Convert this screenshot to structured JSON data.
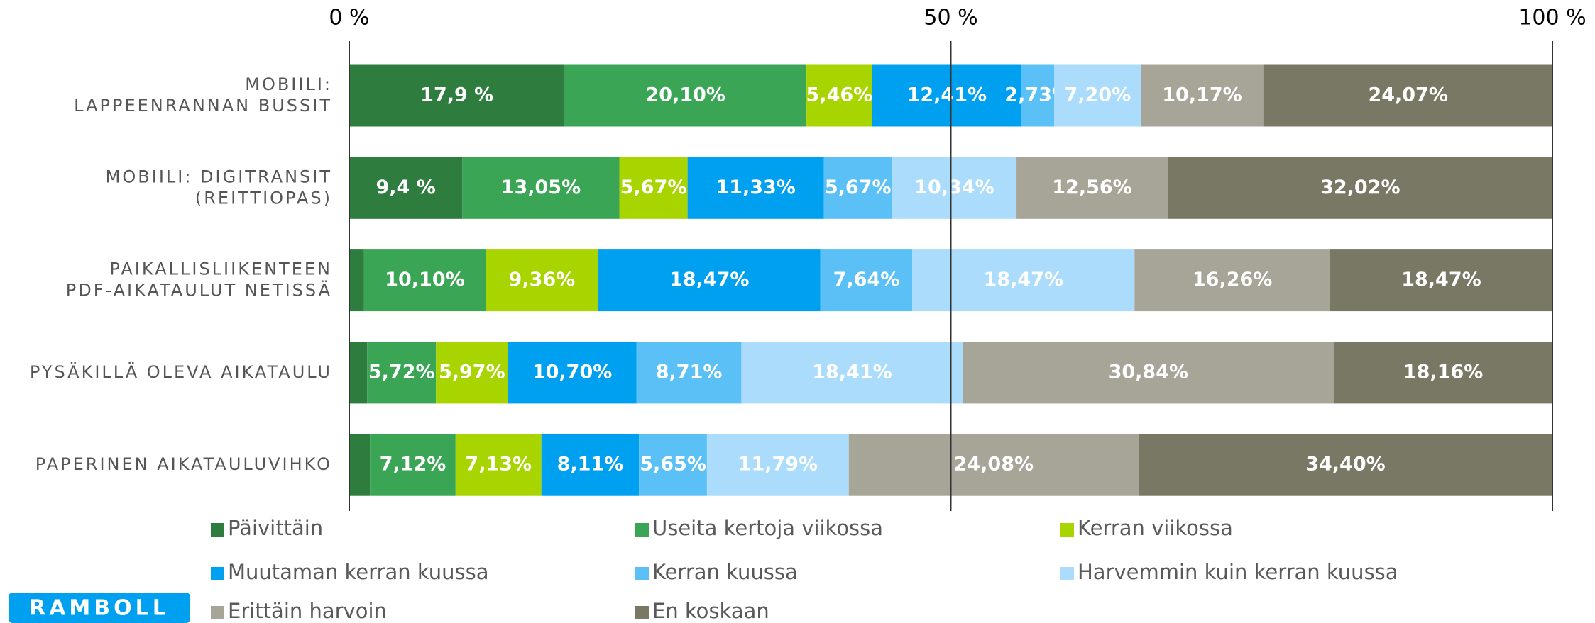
{
  "chart_data": {
    "type": "stacked-bar-horizontal",
    "categories": [
      "MOBIILI:\nLAPPEENRANNAN BUSSIT",
      "MOBIILI: DIGITRANSIT\n(REITTIOPAS)",
      "PAIKALLISLIIKENTEEN\nPDF-AIKATAULUT NETISSÄ",
      "PYSÄKILLÄ OLEVA AIKATAULU",
      "PAPERINEN AIKATAULUVIHKO"
    ],
    "series": [
      {
        "name": "Päivittäin",
        "color": "#2e7d3e",
        "values": [
          17.9,
          9.4,
          1.23,
          1.49,
          1.72
        ],
        "value_labels": [
          "17,9 %",
          "9,4 %",
          null,
          null,
          null
        ]
      },
      {
        "name": "Useita kertoja viikossa",
        "color": "#3aa655",
        "values": [
          20.1,
          13.05,
          10.1,
          5.72,
          7.12
        ],
        "value_labels": [
          "20,10%",
          "13,05%",
          "10,10%",
          "5,72%",
          "7,12%"
        ]
      },
      {
        "name": "Kerran viikossa",
        "color": "#a8d400",
        "values": [
          5.46,
          5.67,
          9.36,
          5.97,
          7.13
        ],
        "value_labels": [
          "5,46%",
          "5,67%",
          "9,36%",
          "5,97%",
          "7,13%"
        ]
      },
      {
        "name": "Muutaman kerran kuussa",
        "color": "#00a0f0",
        "values": [
          12.41,
          11.33,
          18.47,
          10.7,
          8.11
        ],
        "value_labels": [
          "12,41%",
          "11,33%",
          "18,47%",
          "10,70%",
          "8,11%"
        ]
      },
      {
        "name": "Kerran kuussa",
        "color": "#5bc0f5",
        "values": [
          2.73,
          5.67,
          7.64,
          8.71,
          5.65
        ],
        "value_labels": [
          "2,73%",
          "5,67%",
          "7,64%",
          "8,71%",
          "5,65%"
        ]
      },
      {
        "name": "Harvemmin kuin kerran kuussa",
        "color": "#abdcfb",
        "values": [
          7.2,
          10.34,
          18.47,
          18.41,
          11.79
        ],
        "value_labels": [
          "7,20%",
          "10,34%",
          "18,47%",
          "18,41%",
          "11,79%"
        ]
      },
      {
        "name": "Erittäin harvoin",
        "color": "#a6a598",
        "values": [
          10.17,
          12.56,
          16.26,
          30.84,
          24.08
        ],
        "value_labels": [
          "10,17%",
          "12,56%",
          "16,26%",
          "30,84%",
          "24,08%"
        ]
      },
      {
        "name": "En koskaan",
        "color": "#787865",
        "values": [
          24.07,
          32.02,
          18.47,
          18.16,
          34.4
        ],
        "value_labels": [
          "24,07%",
          "32,02%",
          "18,47%",
          "18,16%",
          "34,40%"
        ]
      }
    ],
    "xlim": [
      0,
      100
    ],
    "xticks": [
      {
        "value": 0,
        "label": "0 %"
      },
      {
        "value": 50,
        "label": "50 %"
      },
      {
        "value": 100,
        "label": "100 %"
      }
    ],
    "grid": true,
    "legend": "bottom"
  },
  "logo": "RAMBOLL"
}
